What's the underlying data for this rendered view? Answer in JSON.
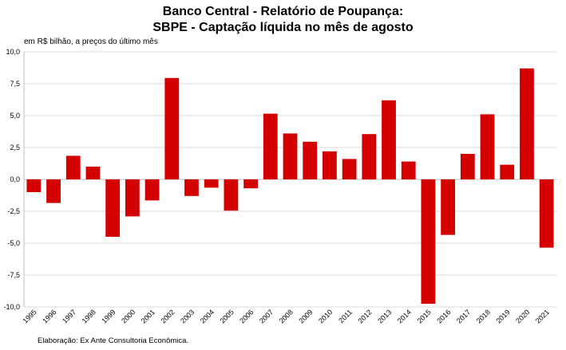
{
  "chart_data": {
    "type": "bar",
    "title": "Banco Central - Relatório de Poupança:",
    "subtitle": "SBPE - Captação líquida no mês de agosto",
    "unit_label": "em R$ bilhão, a preços do último mês",
    "source": "Elaboração: Ex Ante Consultoria Econômica.",
    "categories": [
      "1995",
      "1996",
      "1997",
      "1998",
      "1999",
      "2000",
      "2001",
      "2002",
      "2003",
      "2004",
      "2005",
      "2006",
      "2007",
      "2008",
      "2009",
      "2010",
      "2011",
      "2012",
      "2013",
      "2014",
      "2015",
      "2016",
      "2017",
      "2018",
      "2019",
      "2020",
      "2021"
    ],
    "values": [
      -1.0,
      -1.85,
      1.85,
      1.0,
      -4.5,
      -2.9,
      -1.65,
      7.95,
      -1.3,
      -0.65,
      -2.45,
      -0.7,
      5.15,
      3.6,
      2.95,
      2.2,
      1.6,
      3.55,
      6.2,
      1.4,
      -9.75,
      -4.35,
      2.0,
      5.1,
      1.15,
      8.7,
      -5.35
    ],
    "ylim": [
      -10,
      10
    ],
    "yticks": [
      "10,0",
      "7,5",
      "5,0",
      "2,5",
      "0,0",
      "-2,5",
      "-5,0",
      "-7,5",
      "-10,0"
    ],
    "ytick_values": [
      10,
      7.5,
      5,
      2.5,
      0,
      -2.5,
      -5,
      -7.5,
      -10
    ],
    "bar_color": "#d40000",
    "grid": true
  }
}
